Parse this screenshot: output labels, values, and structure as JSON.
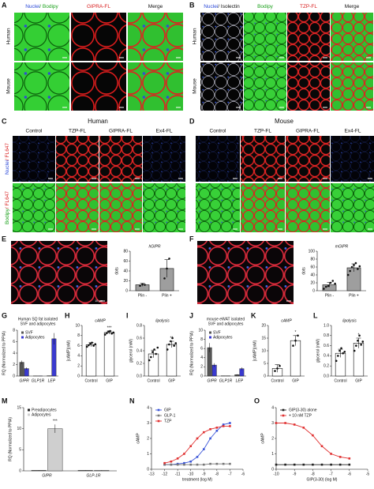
{
  "figure": {
    "A": {
      "label": "A",
      "columns": [
        [
          "Nuclei",
          "/ Bodipy"
        ],
        [
          "GIPRA-FL"
        ],
        [
          "Merge"
        ]
      ],
      "rows": [
        "Human",
        "Mouse"
      ]
    },
    "B": {
      "label": "B",
      "columns": [
        [
          "Nuclei",
          "/ Isolectin"
        ],
        [
          "Bodipy"
        ],
        [
          "TZP-FL"
        ],
        [
          "Merge"
        ]
      ],
      "rows": [
        "Human",
        "Mouse"
      ]
    },
    "C": {
      "label": "C",
      "header": "Human",
      "columns": [
        "Control",
        "TZP-FL",
        "GIPRA-FL",
        "Ex4-FL"
      ],
      "rows": [
        [
          "Nuclei",
          "/ FL647"
        ],
        [
          "Bodipy",
          "/ FL647"
        ]
      ]
    },
    "D": {
      "label": "D",
      "header": "Mouse",
      "columns": [
        "Control",
        "TZP-FL",
        "GIPRA-FL",
        "Ex4-FL"
      ]
    },
    "E": {
      "label": "E",
      "scale": "10 µm"
    },
    "F": {
      "label": "F"
    }
  },
  "chart_data": [
    {
      "type": "bar",
      "title": "hGIPR",
      "ylabel": "dots",
      "categories": [
        "Plin -",
        "Plin +"
      ],
      "values": [
        12,
        45
      ],
      "errors": [
        3,
        18
      ],
      "points": [
        [
          10,
          13,
          12
        ],
        [
          25,
          45,
          65
        ]
      ],
      "color": "#9e9e9e",
      "ylim": [
        0,
        80
      ],
      "yticks": [
        0,
        20,
        40,
        60,
        80
      ]
    },
    {
      "type": "bar",
      "title": "mGIPR",
      "ylabel": "dots",
      "categories": [
        "Plin -",
        "Plin +"
      ],
      "values": [
        15,
        58
      ],
      "errors": [
        6,
        10
      ],
      "points": [
        [
          5,
          10,
          12,
          20,
          25,
          18
        ],
        [
          40,
          50,
          60,
          65,
          70,
          55,
          62
        ]
      ],
      "color": "#9e9e9e",
      "ylim": [
        0,
        100
      ],
      "yticks": [
        0,
        20,
        40,
        60,
        80,
        100
      ]
    },
    {
      "type": "grouped_bar",
      "label": "G",
      "title": [
        "Human SQ fat isolated",
        "SVF and adipocytes"
      ],
      "ylabel": "RQ (Normalized to PPIA)",
      "categories": [
        "GIPR",
        "GLP1R",
        "LEP"
      ],
      "series": [
        {
          "name": "SVF",
          "color": "#555555",
          "values": [
            2.4,
            0.02,
            0.05
          ],
          "errors": [
            0.3,
            0.01,
            0.02
          ]
        },
        {
          "name": "Adipocytes",
          "color": "#3a3ad0",
          "values": [
            1.3,
            0.02,
            6.5
          ],
          "errors": [
            0.2,
            0.01,
            1
          ]
        }
      ],
      "ylim": [
        0,
        8
      ],
      "yticks": [
        0,
        2,
        4,
        6,
        8
      ]
    },
    {
      "type": "bar",
      "label": "H",
      "title": "cAMP",
      "ylabel": "[cAMP](nM)",
      "categories": [
        "Control",
        "GIP"
      ],
      "values": [
        6.2,
        8.6
      ],
      "errors": [
        0.4,
        0.3
      ],
      "points": [
        [
          5.8,
          6.1,
          6.4,
          6.6,
          6.0,
          6.3
        ],
        [
          8.2,
          8.5,
          8.8,
          8.9,
          8.4,
          8.6
        ]
      ],
      "color": "#ffffff",
      "ylim": [
        0,
        10
      ],
      "yticks": [
        0,
        2,
        4,
        6,
        8,
        10
      ],
      "annotation": "***"
    },
    {
      "type": "bar",
      "label": "I",
      "title": "lipolysis",
      "ylabel": "glycerol (mM)",
      "categories": [
        "Control",
        "GIP"
      ],
      "values": [
        0.35,
        0.5
      ],
      "errors": [
        0.06,
        0.05
      ],
      "points": [
        [
          0.25,
          0.3,
          0.38,
          0.42,
          0.35,
          0.45
        ],
        [
          0.42,
          0.5,
          0.55,
          0.6,
          0.48,
          0.52
        ]
      ],
      "color": "#ffffff",
      "ylim": [
        0,
        0.8
      ],
      "yticks": [
        {
          "value": 0,
          "label": "0.0"
        },
        0.2,
        0.4,
        0.6,
        0.8
      ],
      "annotation": "**"
    },
    {
      "type": "grouped_bar",
      "label": "J",
      "title": [
        "mouse eWAT isolated",
        "SVF and adipocytes"
      ],
      "ylabel": "RQ (Normalized to PPIA)",
      "categories": [
        "GIPR",
        "GLP1R",
        "LEP"
      ],
      "series": [
        {
          "name": "SVF",
          "color": "#555555",
          "values": [
            6.2,
            0.05,
            0.3
          ],
          "errors": [
            1,
            0.02,
            0.1
          ]
        },
        {
          "name": "Adipocytes",
          "color": "#3a3ad0",
          "values": [
            2.4,
            0.05,
            1.6
          ],
          "errors": [
            0.4,
            0.02,
            0.3
          ]
        }
      ],
      "ylim": [
        0,
        10
      ],
      "yticks": [
        0,
        2,
        4,
        6,
        8,
        10
      ]
    },
    {
      "type": "bar",
      "label": "K",
      "title": "cAMP",
      "ylabel": "[cAMP](nM)",
      "categories": [
        "Control",
        "GIP"
      ],
      "values": [
        3,
        14
      ],
      "errors": [
        1.5,
        2
      ],
      "points": [
        [
          2,
          3,
          4
        ],
        [
          12,
          14,
          16
        ]
      ],
      "color": "#ffffff",
      "ylim": [
        0,
        20
      ],
      "yticks": [
        0,
        5,
        10,
        15,
        20
      ],
      "annotation": "*"
    },
    {
      "type": "bar",
      "label": "L",
      "title": "lipolysis",
      "ylabel": "glycerol (mM)",
      "categories": [
        "Control",
        "GIP"
      ],
      "values": [
        0.45,
        0.65
      ],
      "errors": [
        0.08,
        0.1
      ],
      "points": [
        [
          0.3,
          0.4,
          0.5,
          0.55,
          0.45,
          0.48
        ],
        [
          0.5,
          0.6,
          0.7,
          0.8,
          0.62,
          0.68
        ]
      ],
      "color": "#ffffff",
      "ylim": [
        0,
        1
      ],
      "yticks": [
        {
          "value": 0,
          "label": "0.0"
        },
        0.2,
        0.4,
        0.6,
        0.8,
        {
          "value": 1,
          "label": "1.0"
        }
      ],
      "annotation": "*"
    },
    {
      "type": "grouped_bar",
      "label": "M",
      "ylabel": "RQ (Normalized to PPIA)",
      "categories": [
        "GIPR",
        "GLP-1R"
      ],
      "series": [
        {
          "name": "Preadipocytes",
          "color": "#222222",
          "values": [
            0.1,
            0.1
          ],
          "errors": [
            0.05,
            0.05
          ]
        },
        {
          "name": "Adipocytes",
          "color": "#cfcfcf",
          "values": [
            10,
            0.1
          ],
          "errors": [
            1,
            0.05
          ]
        }
      ],
      "ylim": [
        0,
        15
      ],
      "yticks": [
        0,
        5,
        10,
        15
      ],
      "annotation": "***"
    },
    {
      "type": "line",
      "label": "N",
      "xlabel": "treatment (log M)",
      "ylabel": "cAMP",
      "x": [
        -12,
        -11.5,
        -11,
        -10.5,
        -10,
        -9.5,
        -9,
        -8.5,
        -8,
        -7.5,
        -7
      ],
      "series": [
        {
          "name": "GIP",
          "color": "#3a55d8",
          "values": [
            0.3,
            0.3,
            0.35,
            0.4,
            0.5,
            0.8,
            1.3,
            2.0,
            2.5,
            2.9,
            3.0
          ]
        },
        {
          "name": "GLP-1",
          "color": "#777777",
          "values": [
            0.3,
            0.3,
            0.3,
            0.3,
            0.3,
            0.3,
            0.3,
            0.35,
            0.35,
            0.35,
            0.35
          ]
        },
        {
          "name": "TZP",
          "color": "#e03030",
          "values": [
            0.4,
            0.5,
            0.7,
            1.0,
            1.5,
            2.0,
            2.4,
            2.6,
            2.7,
            2.8,
            2.8
          ]
        }
      ],
      "xlim": [
        -13,
        -6
      ],
      "xticks": [
        -13,
        -12,
        -11,
        -10,
        -9,
        -8,
        -7,
        -6
      ],
      "ylim": [
        0,
        4
      ],
      "yticks": [
        0,
        1,
        2,
        3,
        4
      ]
    },
    {
      "type": "line",
      "label": "O",
      "xlabel": "GIP(3-30) (log M)",
      "ylabel": "cAMP",
      "x": [
        -10,
        -9.5,
        -9,
        -8.5,
        -8,
        -7.5,
        -7,
        -6.5,
        -6
      ],
      "series": [
        {
          "name": "GIP(3-30) alone",
          "color": "#222222",
          "values": [
            0.3,
            0.3,
            0.3,
            0.3,
            0.3,
            0.3,
            0.3,
            0.3,
            0.3
          ]
        },
        {
          "name": "+ 10 nM TZP",
          "color": "#e03030",
          "values": [
            3.0,
            3.0,
            2.9,
            2.7,
            2.2,
            1.5,
            1.0,
            0.8,
            0.7
          ]
        }
      ],
      "xlim": [
        -10,
        -5
      ],
      "xticks": [
        -10,
        -9,
        -8,
        -7,
        -6,
        -5
      ],
      "ylim": [
        0,
        4
      ],
      "yticks": [
        0,
        1,
        2,
        3,
        4
      ]
    }
  ]
}
